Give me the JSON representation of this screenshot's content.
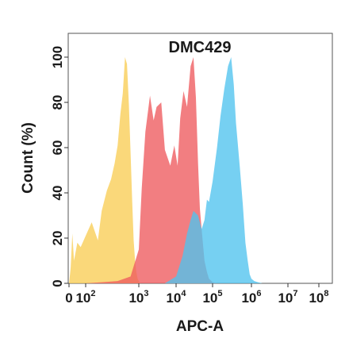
{
  "chart_data": {
    "type": "area",
    "title": "DMC429",
    "xlabel": "APC-A",
    "ylabel": "Count  (%)",
    "x_scale": "biexponential",
    "y_range": [
      0,
      100
    ],
    "x_ticks": [
      {
        "base": "0",
        "exp": ""
      },
      {
        "base": "10",
        "exp": "2"
      },
      {
        "base": "10",
        "exp": "3"
      },
      {
        "base": "10",
        "exp": "4"
      },
      {
        "base": "10",
        "exp": "5"
      },
      {
        "base": "10",
        "exp": "6"
      },
      {
        "base": "10",
        "exp": "7"
      },
      {
        "base": "10",
        "exp": "8"
      }
    ],
    "y_ticks": [
      "0",
      "20",
      "40",
      "60",
      "80",
      "100"
    ],
    "grid": false,
    "series": [
      {
        "color": "#F9CD55",
        "x": [
          0,
          2,
          10,
          20,
          30,
          50,
          70,
          100,
          130,
          170,
          200,
          250,
          300,
          350,
          400,
          450,
          500,
          550,
          600,
          650,
          700,
          750,
          800,
          850,
          900,
          950,
          1000,
          1050,
          1100
        ],
        "y": [
          0,
          1,
          7,
          22,
          10,
          18,
          16,
          21,
          27,
          19,
          32,
          41,
          46,
          53,
          61,
          75,
          84,
          100,
          97,
          79,
          58,
          37,
          19,
          10,
          5,
          2,
          1,
          0.5,
          0
        ]
      },
      {
        "color": "#EE5A5E",
        "x": [
          100,
          200,
          400,
          700,
          1000,
          1200,
          1500,
          2000,
          2500,
          3000,
          4000,
          5000,
          7000,
          9000,
          11000,
          13000,
          16000,
          20000,
          25000,
          30000,
          35000,
          40000,
          45000,
          50000,
          60000,
          70000,
          80000,
          100000,
          130000
        ],
        "y": [
          0,
          0.5,
          1,
          3,
          15,
          42,
          67,
          83,
          72,
          78,
          80,
          59,
          52,
          61,
          52,
          73,
          85,
          78,
          96,
          100,
          82,
          53,
          33,
          24,
          10,
          5,
          2,
          0.5,
          0
        ]
      },
      {
        "color": "#4FC3EE",
        "x": [
          5000,
          10000,
          15000,
          20000,
          25000,
          30000,
          40000,
          50000,
          60000,
          70000,
          80000,
          100000,
          130000,
          160000,
          200000,
          250000,
          300000,
          350000,
          400000,
          500000,
          600000,
          700000,
          800000,
          900000,
          1000000,
          1200000,
          1500000,
          2000000
        ],
        "y": [
          0,
          3,
          12,
          22,
          28,
          32,
          30,
          24,
          28,
          37,
          36,
          45,
          60,
          74,
          86,
          96,
          100,
          88,
          71,
          52,
          35,
          18,
          10,
          4,
          2,
          1,
          0.5,
          0
        ]
      }
    ]
  }
}
